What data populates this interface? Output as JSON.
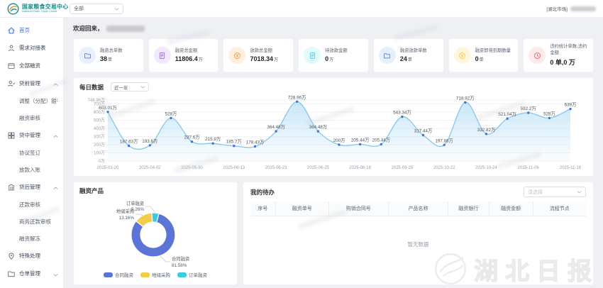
{
  "header": {
    "logo_title": "国家粮食交易中心",
    "logo_subtitle": "National Grain Trade Center",
    "market_select": "全部",
    "user_market": "[湖北市场]"
  },
  "sidebar": {
    "items": [
      {
        "key": "home",
        "label": "首页",
        "icon": "home",
        "active": true
      },
      {
        "key": "demand-docking",
        "label": "需求对接表",
        "icon": "user"
      },
      {
        "key": "all-financing",
        "label": "全部融资",
        "icon": "card"
      },
      {
        "key": "pre-loan",
        "label": "贷前管理",
        "icon": "person",
        "group": true,
        "expanded": true
      },
      {
        "key": "adjust-bank",
        "label": "调整（分配）银行",
        "sub": true
      },
      {
        "key": "financing-review",
        "label": "融资审核",
        "sub": true
      },
      {
        "key": "in-loan",
        "label": "贷中管理",
        "icon": "grid",
        "group": true,
        "expanded": true
      },
      {
        "key": "agreement-sign",
        "label": "协议签订",
        "sub": true
      },
      {
        "key": "loan-entry",
        "label": "放款入账",
        "sub": true
      },
      {
        "key": "post-loan",
        "label": "贷后管理",
        "icon": "bank",
        "group": true,
        "expanded": true
      },
      {
        "key": "repayment-review",
        "label": "还款审核",
        "sub": true
      },
      {
        "key": "biz-repayment-review",
        "label": "商务还款审核",
        "sub": true
      },
      {
        "key": "financing-unfreeze",
        "label": "融资解冻",
        "sub": true
      },
      {
        "key": "special-handling",
        "label": "特殊处理",
        "icon": "pin"
      },
      {
        "key": "warehouse-receipt",
        "label": "仓单管理",
        "icon": "folder",
        "group": true,
        "expanded": false
      }
    ]
  },
  "main": {
    "welcome": "欢迎回来，",
    "stats": [
      {
        "label": "融资总单数",
        "value": "38",
        "unit": "单",
        "icon": "folder",
        "color": "#4a7df0",
        "bg": "#e8efff"
      },
      {
        "label": "融资总金额",
        "value": "11806.4",
        "unit": "万",
        "icon": "doc",
        "color": "#a15fe8",
        "bg": "#f3e9fe"
      },
      {
        "label": "放款总金额",
        "value": "7018.34",
        "unit": "万",
        "icon": "coin",
        "color": "#f2923f",
        "bg": "#ffefe1"
      },
      {
        "label": "待放款金额",
        "value": "0",
        "unit": "万",
        "icon": "doc",
        "color": "#3fd2e4",
        "bg": "#e2f9fd"
      },
      {
        "label": "融资放款单数",
        "value": "24",
        "unit": "单",
        "icon": "folder",
        "color": "#3f87f0",
        "bg": "#e5f0ff"
      },
      {
        "label": "融资即将到期数量",
        "value": "0",
        "unit": "单",
        "icon": "coin",
        "color": "#f0c93f",
        "bg": "#fcf6da"
      },
      {
        "label": "违约统计单数,违约金额",
        "value": "0 单,0 万",
        "unit": "",
        "icon": "clock",
        "color": "#e85a5a",
        "bg": "#fdeaea"
      }
    ]
  },
  "chart_data": [
    {
      "type": "area",
      "title": "每日数据",
      "range_select": "近一年",
      "x_tick_labels": [
        "2025-03-20",
        "2025-04-02",
        "2025-05-30",
        "2025-06-13",
        "2025-06-23",
        "2025-06-25",
        "2025-08-18",
        "2025-09-25",
        "2025-10-22",
        "2025-10-24",
        "2025-11-06",
        "2025-11-18"
      ],
      "x_tick_indices": [
        0,
        2,
        4,
        6,
        8,
        10,
        12,
        14,
        16,
        18,
        20,
        22
      ],
      "values": [
        603.01,
        187.63,
        193.6,
        528,
        237.6,
        215.9,
        185.7,
        178.43,
        364.48,
        728.96,
        364.48,
        200,
        205.44,
        205.44,
        543.34,
        317.44,
        197.88,
        718.92,
        332.82,
        521.04,
        592.2,
        528,
        639
      ],
      "labels": [
        "603.01万",
        "187.63万",
        "193.6万",
        "528万",
        "237.6万",
        "215.9万",
        "185.7万",
        "178.43万",
        "364.48万",
        "728.96万",
        "364.48万",
        "200万",
        "205.44万",
        "205.44万",
        "543.34万",
        "317.44万",
        "197.88万",
        "718.92万",
        "332.82万",
        "521.04万",
        "592.2万",
        "528万",
        "639万"
      ],
      "y_ticks": [
        {
          "v": 748.96,
          "label": "748.96万"
        },
        {
          "v": 700,
          "label": "700万"
        },
        {
          "v": 600,
          "label": "600万"
        },
        {
          "v": 500,
          "label": "500万"
        },
        {
          "v": 400,
          "label": "400万"
        },
        {
          "v": 300,
          "label": "300万"
        },
        {
          "v": 200,
          "label": "200万"
        },
        {
          "v": 100,
          "label": "100万"
        },
        {
          "v": 0,
          "label": "0万"
        }
      ],
      "y_max": 748.96,
      "line_color": "#85c7ea",
      "point_color": "#3d74d8",
      "grid": true,
      "legend_position": "none"
    },
    {
      "type": "pie",
      "title": "融资产品",
      "slices": [
        {
          "name": "合同融资",
          "pct": 81.58,
          "pct_label": "81.58%",
          "color": "#5b74d6"
        },
        {
          "name": "地储采购",
          "pct": 13.16,
          "pct_label": "13.16%",
          "color": "#f3cd49"
        },
        {
          "name": "订单融资",
          "pct": 5.26,
          "pct_label": "5.26%",
          "color": "#39cde2"
        }
      ],
      "legend": [
        "合同融资",
        "地储采购",
        "订单融资"
      ],
      "legend_position": "bottom"
    }
  ],
  "todo": {
    "title": "我的待办",
    "filter_placeholder": "请选择",
    "columns": [
      "序号",
      "融资单号",
      "购销合同号",
      "产品名称",
      "融资银行",
      "融资金额",
      "流程节点"
    ],
    "empty_text": "暂无数据"
  },
  "watermark": {
    "text": "湖北日报"
  }
}
